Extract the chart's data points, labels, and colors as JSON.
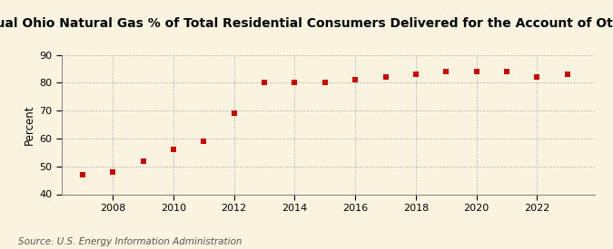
{
  "title": "Annual Ohio Natural Gas % of Total Residential Consumers Delivered for the Account of Others",
  "ylabel": "Percent",
  "source": "Source: U.S. Energy Information Administration",
  "years": [
    2007,
    2008,
    2009,
    2010,
    2011,
    2012,
    2013,
    2014,
    2015,
    2016,
    2017,
    2018,
    2019,
    2020,
    2021,
    2022,
    2023
  ],
  "values": [
    47.0,
    48.0,
    52.0,
    56.0,
    59.0,
    69.0,
    80.0,
    80.0,
    80.0,
    81.0,
    82.0,
    83.0,
    84.0,
    84.0,
    84.0,
    82.0,
    83.0
  ],
  "ylim": [
    40,
    90
  ],
  "yticks": [
    40,
    50,
    60,
    70,
    80,
    90
  ],
  "xticks": [
    2008,
    2010,
    2012,
    2014,
    2016,
    2018,
    2020,
    2022
  ],
  "xlim": [
    2006.3,
    2023.9
  ],
  "marker_color": "#cc0000",
  "marker": "s",
  "marker_size": 16,
  "bg_color": "#faf3e0",
  "grid_color": "#b0b0b0",
  "title_fontsize": 10,
  "ylabel_fontsize": 8.5,
  "tick_fontsize": 8,
  "source_fontsize": 7.5
}
